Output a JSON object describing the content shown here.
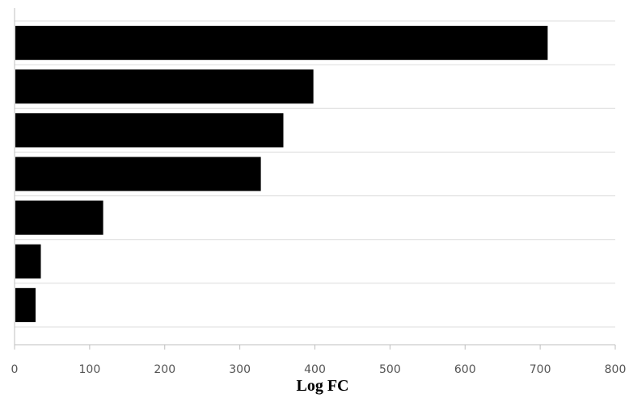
{
  "chart_data": {
    "type": "bar",
    "orientation": "horizontal",
    "title": "",
    "xlabel": "Log FC",
    "ylabel": "",
    "categories": [
      "",
      "",
      "",
      "",
      "",
      "",
      ""
    ],
    "values": [
      710,
      398,
      358,
      328,
      118,
      35,
      28
    ],
    "xlim": [
      0,
      800
    ],
    "x_ticks": [
      "0",
      "100",
      "200",
      "300",
      "400",
      "500",
      "600",
      "700",
      "800"
    ],
    "grid": true,
    "legend": "none",
    "bar_color": "#000000",
    "grid_color": "#dcdcdc",
    "axis_color": "#bfbfbf"
  }
}
